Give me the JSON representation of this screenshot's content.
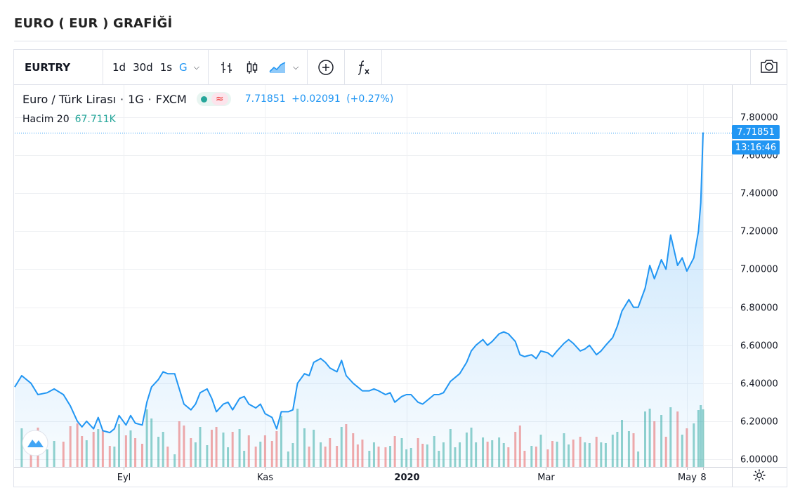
{
  "page_title": "EURO ( EUR ) GRAFİĞİ",
  "toolbar": {
    "symbol": "EURTRY",
    "intervals": [
      "1d",
      "30d",
      "1s",
      "G"
    ],
    "active_interval": "G"
  },
  "legend": {
    "name": "Euro / Türk Lirası",
    "sep": "·",
    "interval": "1G",
    "exchange": "FXCM",
    "approx_icon": "≈",
    "last": "7.71851",
    "change": "+0.02091",
    "change_pct": "(+0.27%)",
    "volume_label": "Hacim 20",
    "volume_value": "67.711K"
  },
  "price_axis": {
    "last_price_label": "7.71851",
    "countdown_label": "13:16:46"
  },
  "icons": {
    "bar_type": "ohlc-bars-icon",
    "candles": "candles-icon",
    "area": "area-chart-icon",
    "indicators": "compare-plus-icon",
    "fx": "function-fx-icon",
    "camera": "camera-icon",
    "settings": "gear-icon",
    "logo": "tradingview-logo-icon"
  },
  "colors": {
    "line": "#2196f3",
    "up_volume": "#26a69a",
    "down_volume": "#ef5350",
    "accent": "#2196f3"
  },
  "chart_data": {
    "type": "area",
    "title": "Euro / Türk Lirası · 1G · FXCM",
    "x_range": [
      "2019-07-16",
      "2020-05-08"
    ],
    "x_ticks": [
      {
        "label": "Eyl",
        "date": "2019-09-01"
      },
      {
        "label": "Kas",
        "date": "2019-11-01"
      },
      {
        "label": "2020",
        "date": "2020-01-01"
      },
      {
        "label": "Mar",
        "date": "2020-03-01"
      },
      {
        "label": "May",
        "date": "2020-05-01"
      },
      {
        "label": "8",
        "date": "2020-05-08"
      }
    ],
    "y_ticks": [
      "7.80000",
      "7.60000",
      "7.40000",
      "7.20000",
      "7.00000",
      "6.80000",
      "6.60000",
      "6.40000",
      "6.20000",
      "6.00000"
    ],
    "ylim": [
      6.0,
      7.8
    ],
    "series": [
      {
        "name": "EURTRY",
        "points": [
          [
            "2019-07-16",
            6.38
          ],
          [
            "2019-07-19",
            6.44
          ],
          [
            "2019-07-23",
            6.4
          ],
          [
            "2019-07-26",
            6.34
          ],
          [
            "2019-07-30",
            6.35
          ],
          [
            "2019-08-02",
            6.37
          ],
          [
            "2019-08-06",
            6.34
          ],
          [
            "2019-08-09",
            6.28
          ],
          [
            "2019-08-12",
            6.2
          ],
          [
            "2019-08-14",
            6.17
          ],
          [
            "2019-08-16",
            6.2
          ],
          [
            "2019-08-19",
            6.16
          ],
          [
            "2019-08-21",
            6.22
          ],
          [
            "2019-08-23",
            6.15
          ],
          [
            "2019-08-26",
            6.14
          ],
          [
            "2019-08-28",
            6.16
          ],
          [
            "2019-08-30",
            6.23
          ],
          [
            "2019-09-02",
            6.18
          ],
          [
            "2019-09-04",
            6.23
          ],
          [
            "2019-09-06",
            6.19
          ],
          [
            "2019-09-09",
            6.18
          ],
          [
            "2019-09-11",
            6.3
          ],
          [
            "2019-09-13",
            6.38
          ],
          [
            "2019-09-16",
            6.42
          ],
          [
            "2019-09-18",
            6.46
          ],
          [
            "2019-09-20",
            6.45
          ],
          [
            "2019-09-23",
            6.45
          ],
          [
            "2019-09-25",
            6.37
          ],
          [
            "2019-09-27",
            6.29
          ],
          [
            "2019-09-30",
            6.26
          ],
          [
            "2019-10-02",
            6.29
          ],
          [
            "2019-10-04",
            6.35
          ],
          [
            "2019-10-07",
            6.37
          ],
          [
            "2019-10-09",
            6.32
          ],
          [
            "2019-10-11",
            6.25
          ],
          [
            "2019-10-14",
            6.29
          ],
          [
            "2019-10-16",
            6.3
          ],
          [
            "2019-10-18",
            6.26
          ],
          [
            "2019-10-21",
            6.32
          ],
          [
            "2019-10-23",
            6.33
          ],
          [
            "2019-10-25",
            6.29
          ],
          [
            "2019-10-28",
            6.27
          ],
          [
            "2019-10-30",
            6.29
          ],
          [
            "2019-11-01",
            6.24
          ],
          [
            "2019-11-04",
            6.22
          ],
          [
            "2019-11-06",
            6.16
          ],
          [
            "2019-11-08",
            6.25
          ],
          [
            "2019-11-11",
            6.25
          ],
          [
            "2019-11-13",
            6.26
          ],
          [
            "2019-11-15",
            6.4
          ],
          [
            "2019-11-18",
            6.45
          ],
          [
            "2019-11-20",
            6.44
          ],
          [
            "2019-11-22",
            6.51
          ],
          [
            "2019-11-25",
            6.53
          ],
          [
            "2019-11-27",
            6.51
          ],
          [
            "2019-11-29",
            6.48
          ],
          [
            "2019-12-02",
            6.46
          ],
          [
            "2019-12-04",
            6.52
          ],
          [
            "2019-12-06",
            6.44
          ],
          [
            "2019-12-09",
            6.4
          ],
          [
            "2019-12-11",
            6.38
          ],
          [
            "2019-12-13",
            6.36
          ],
          [
            "2019-12-16",
            6.36
          ],
          [
            "2019-12-18",
            6.37
          ],
          [
            "2019-12-20",
            6.36
          ],
          [
            "2019-12-23",
            6.34
          ],
          [
            "2019-12-25",
            6.35
          ],
          [
            "2019-12-27",
            6.3
          ],
          [
            "2019-12-30",
            6.33
          ],
          [
            "2020-01-01",
            6.34
          ],
          [
            "2020-01-03",
            6.34
          ],
          [
            "2020-01-06",
            6.3
          ],
          [
            "2020-01-08",
            6.29
          ],
          [
            "2020-01-10",
            6.31
          ],
          [
            "2020-01-13",
            6.34
          ],
          [
            "2020-01-15",
            6.34
          ],
          [
            "2020-01-17",
            6.35
          ],
          [
            "2020-01-20",
            6.41
          ],
          [
            "2020-01-22",
            6.43
          ],
          [
            "2020-01-24",
            6.45
          ],
          [
            "2020-01-27",
            6.51
          ],
          [
            "2020-01-29",
            6.57
          ],
          [
            "2020-01-31",
            6.6
          ],
          [
            "2020-02-03",
            6.63
          ],
          [
            "2020-02-05",
            6.6
          ],
          [
            "2020-02-07",
            6.62
          ],
          [
            "2020-02-10",
            6.66
          ],
          [
            "2020-02-12",
            6.67
          ],
          [
            "2020-02-14",
            6.66
          ],
          [
            "2020-02-17",
            6.62
          ],
          [
            "2020-02-19",
            6.55
          ],
          [
            "2020-02-21",
            6.54
          ],
          [
            "2020-02-24",
            6.55
          ],
          [
            "2020-02-26",
            6.53
          ],
          [
            "2020-02-28",
            6.57
          ],
          [
            "2020-03-02",
            6.56
          ],
          [
            "2020-03-04",
            6.54
          ],
          [
            "2020-03-06",
            6.57
          ],
          [
            "2020-03-09",
            6.61
          ],
          [
            "2020-03-11",
            6.63
          ],
          [
            "2020-03-13",
            6.61
          ],
          [
            "2020-03-16",
            6.57
          ],
          [
            "2020-03-18",
            6.58
          ],
          [
            "2020-03-20",
            6.6
          ],
          [
            "2020-03-23",
            6.55
          ],
          [
            "2020-03-25",
            6.57
          ],
          [
            "2020-03-27",
            6.6
          ],
          [
            "2020-03-30",
            6.64
          ],
          [
            "2020-04-01",
            6.7
          ],
          [
            "2020-04-03",
            6.78
          ],
          [
            "2020-04-06",
            6.84
          ],
          [
            "2020-04-08",
            6.8
          ],
          [
            "2020-04-10",
            6.8
          ],
          [
            "2020-04-13",
            6.9
          ],
          [
            "2020-04-15",
            7.02
          ],
          [
            "2020-04-17",
            6.95
          ],
          [
            "2020-04-20",
            7.05
          ],
          [
            "2020-04-22",
            7.0
          ],
          [
            "2020-04-24",
            7.18
          ],
          [
            "2020-04-27",
            7.02
          ],
          [
            "2020-04-29",
            7.06
          ],
          [
            "2020-05-01",
            6.99
          ],
          [
            "2020-05-04",
            7.06
          ],
          [
            "2020-05-06",
            7.2
          ],
          [
            "2020-05-07",
            7.35
          ],
          [
            "2020-05-08",
            7.72
          ]
        ]
      }
    ],
    "volume": {
      "name": "Hacim 20",
      "last": "67.711K"
    },
    "grid": true,
    "legend": "top-left"
  }
}
